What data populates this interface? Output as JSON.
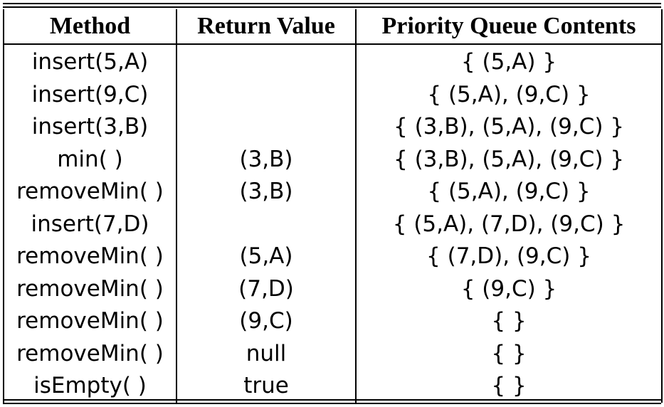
{
  "table": {
    "headers": [
      "Method",
      "Return Value",
      "Priority Queue Contents"
    ],
    "rows": [
      {
        "method": "insert(5,A)",
        "return": "",
        "contents": "{ (5,A) }"
      },
      {
        "method": "insert(9,C)",
        "return": "",
        "contents": "{ (5,A), (9,C) }"
      },
      {
        "method": "insert(3,B)",
        "return": "",
        "contents": "{ (3,B), (5,A), (9,C) }"
      },
      {
        "method": "min( )",
        "return": "(3,B)",
        "contents": "{ (3,B), (5,A), (9,C) }"
      },
      {
        "method": "removeMin( )",
        "return": "(3,B)",
        "contents": "{ (5,A), (9,C) }"
      },
      {
        "method": "insert(7,D)",
        "return": "",
        "contents": "{ (5,A), (7,D), (9,C) }"
      },
      {
        "method": "removeMin( )",
        "return": "(5,A)",
        "contents": "{ (7,D), (9,C) }"
      },
      {
        "method": "removeMin( )",
        "return": "(7,D)",
        "contents": "{ (9,C) }"
      },
      {
        "method": "removeMin( )",
        "return": "(9,C)",
        "contents": "{   }"
      },
      {
        "method": "removeMin( )",
        "return": "null",
        "contents": "{   }"
      },
      {
        "method": "isEmpty( )",
        "return": "true",
        "contents": "{   }"
      }
    ]
  }
}
